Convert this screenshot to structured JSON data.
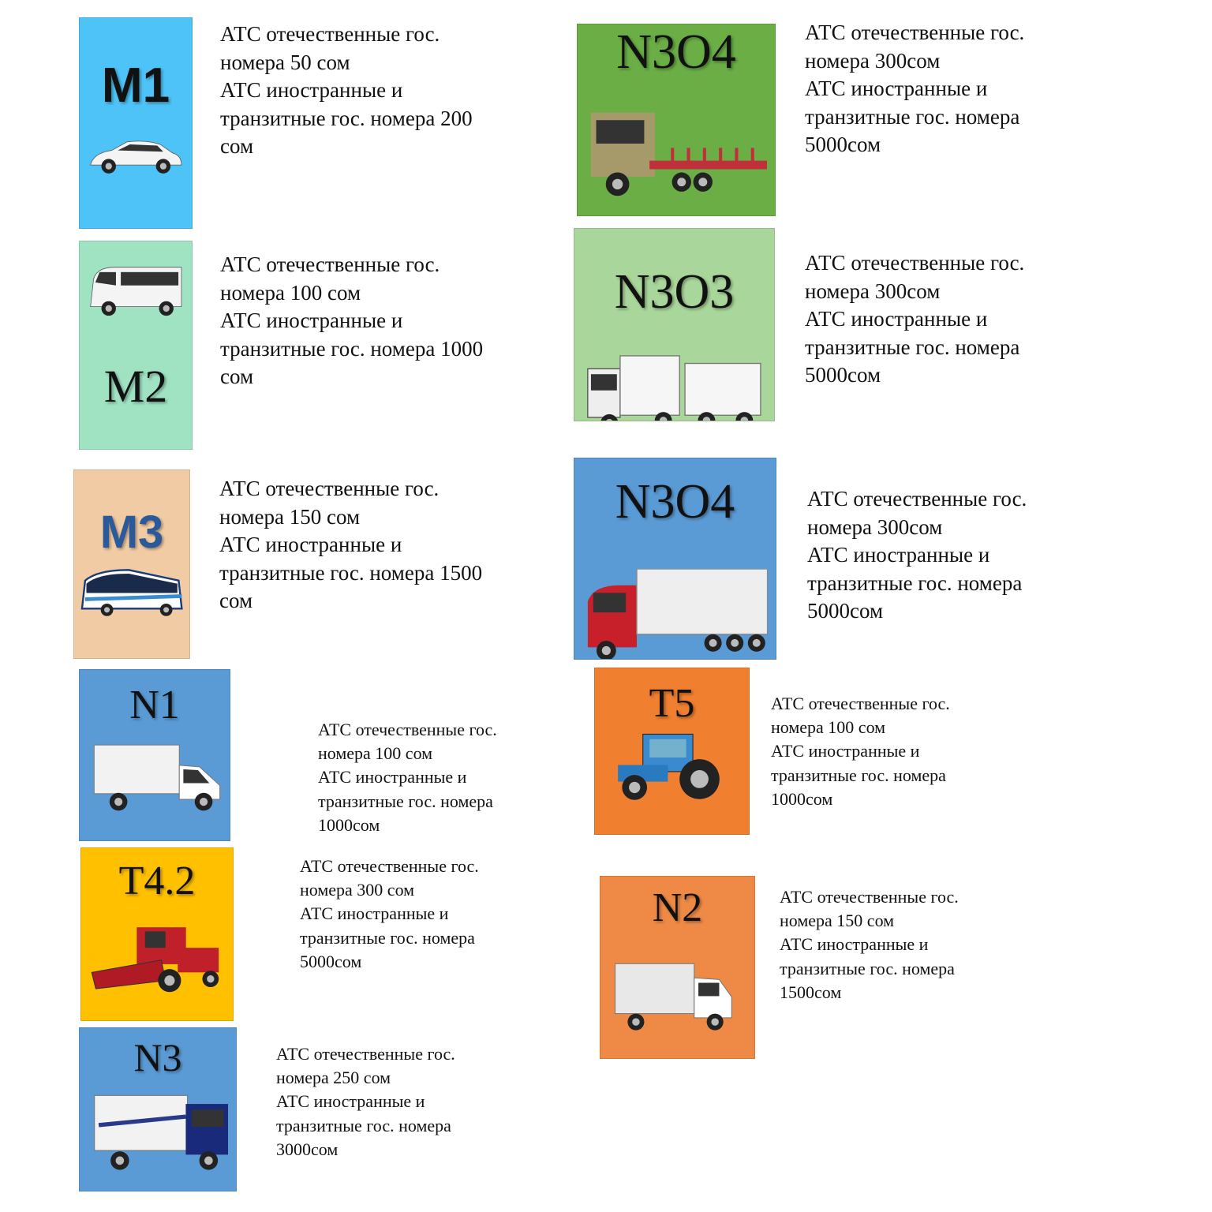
{
  "colors": {
    "m1": "#4DC3F7",
    "m2": "#9FE3C3",
    "m3": "#F1CBA3",
    "blue": "#5B9BD5",
    "yellow": "#FFC000",
    "green": "#6AAE45",
    "lightgreen": "#A9D69A",
    "orange": "#F07F30",
    "orange2": "#EE8A45"
  },
  "cards": [
    {
      "label": "M1",
      "icon": "car-icon",
      "lines": [
        "АТС отечественные  гос.",
        "номера 50 сом",
        "АТС иностранные и",
        "транзитные гос. номера   200",
        "сом"
      ]
    },
    {
      "label": "M2",
      "icon": "minibus-icon",
      "lines": [
        "АТС отечественные  гос.",
        "номера 100 сом",
        "АТС иностранные и",
        "транзитные гос. номера 1000",
        "сом"
      ]
    },
    {
      "label": "M3",
      "icon": "bus-icon",
      "lines": [
        "АТС отечественные  гос.",
        "номера 150 сом",
        "АТС иностранные и",
        "транзитные гос. номера 1500",
        "сом"
      ]
    },
    {
      "label": "N1",
      "icon": "van-icon",
      "lines": [
        "АТС отечественные  гос.",
        "номера 100 сом",
        "АТС иностранные и",
        "транзитные гос. номера",
        "1000сом"
      ]
    },
    {
      "label": "T4.2",
      "icon": "combine-harvester-icon",
      "lines": [
        "АТС отечественные  гос.",
        "номера 300 сом",
        "АТС иностранные и",
        "транзитные гос. номера",
        "5000сом"
      ]
    },
    {
      "label": "N3",
      "icon": "truck-icon",
      "lines": [
        "АТС отечественные  гос.",
        "номера 250 сом",
        "АТС иностранные и",
        "транзитные гос. номера",
        "3000сом"
      ]
    },
    {
      "label": "N3O4",
      "icon": "flatbed-truck-icon",
      "lines": [
        "АТС отечественные  гос.",
        "номера 300сом",
        "АТС иностранные и",
        "транзитные гос. номера",
        "5000сом"
      ]
    },
    {
      "label": "N3O3",
      "icon": "truck-trailer-icon",
      "lines": [
        "АТС отечественные  гос.",
        "номера 300сом",
        "АТС иностранные и",
        "транзитные гос. номера",
        "5000сом"
      ]
    },
    {
      "label": "N3O4",
      "icon": "semi-trailer-truck-icon",
      "lines": [
        "АТС отечественные  гос.",
        "номера 300сом",
        "АТС иностранные и",
        "транзитные гос. номера",
        "5000сом"
      ]
    },
    {
      "label": "T5",
      "icon": "tractor-icon",
      "lines": [
        "АТС отечественные  гос.",
        "номера 100 сом",
        "АТС иностранные и",
        "транзитные гос. номера",
        "1000сом"
      ]
    },
    {
      "label": "N2",
      "icon": "small-truck-icon",
      "lines": [
        "АТС отечественные  гос.",
        "номера 150 сом",
        "АТС иностранные и",
        "транзитные гос. номера",
        "1500сом"
      ]
    }
  ]
}
